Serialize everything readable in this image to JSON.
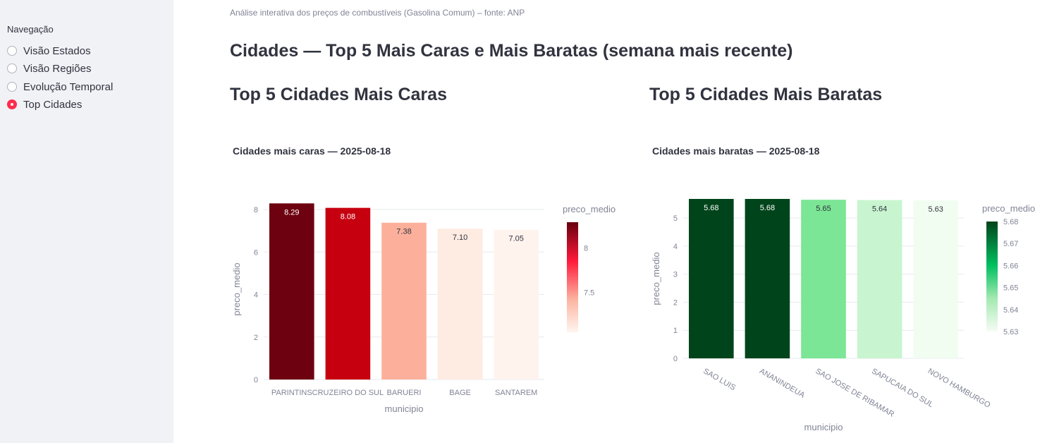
{
  "sidebar": {
    "title": "Navegação",
    "items": [
      {
        "label": "Visão Estados",
        "selected": false
      },
      {
        "label": "Visão Regiões",
        "selected": false
      },
      {
        "label": "Evolução Temporal",
        "selected": false
      },
      {
        "label": "Top Cidades",
        "selected": true
      }
    ]
  },
  "main": {
    "caption": "Análise interativa dos preços de combustíveis (Gasolina Comum) – fonte: ANP",
    "title": "Cidades — Top 5 Mais Caras e Mais Baratas (semana mais recente)",
    "left_heading": "Top 5 Cidades Mais Caras",
    "right_heading": "Top 5 Cidades Mais Baratas"
  },
  "colors": {
    "accent": "#ff2b4b",
    "sidebar_bg": "#f0f2f6"
  },
  "chart_data": [
    {
      "type": "bar",
      "title": "Cidades mais caras — 2025-08-18",
      "xlabel": "municipio",
      "ylabel": "preco_medio",
      "categories": [
        "PARINTINS",
        "CRUZEIRO DO SUL",
        "BARUERI",
        "BAGE",
        "SANTAREM"
      ],
      "values": [
        8.29,
        8.08,
        7.38,
        7.1,
        7.05
      ],
      "data_labels": [
        "8.29",
        "8.08",
        "7.38",
        "7.10",
        "7.05"
      ],
      "ylim": [
        0,
        8.5
      ],
      "yticks": [
        0,
        2,
        4,
        6,
        8
      ],
      "colorbar": {
        "title": "preco_medio",
        "ticks": [
          "8",
          "7.5"
        ],
        "tick_values": [
          8,
          7.5
        ],
        "range": [
          7.05,
          8.29
        ],
        "scale": "Reds"
      },
      "bar_colors": [
        "#6d010f",
        "#c6000f",
        "#fcb09b",
        "#feebe2",
        "#fff3ee"
      ],
      "label_colors": [
        "#ffffff",
        "#ffffff",
        "#31333f",
        "#31333f",
        "#31333f"
      ],
      "grid": true,
      "legend": "right"
    },
    {
      "type": "bar",
      "title": "Cidades mais baratas — 2025-08-18",
      "xlabel": "municipio",
      "ylabel": "preco_medio",
      "categories": [
        "SAO LUIS",
        "ANANINDEUA",
        "SAO JOSE DE RIBAMAR",
        "SAPUCAIA DO SUL",
        "NOVO HAMBURGO"
      ],
      "values": [
        5.68,
        5.68,
        5.65,
        5.64,
        5.63
      ],
      "data_labels": [
        "5.68",
        "5.68",
        "5.65",
        "5.64",
        "5.63"
      ],
      "ylim": [
        0,
        5.68
      ],
      "yticks": [
        0,
        1,
        2,
        3,
        4,
        5
      ],
      "colorbar": {
        "title": "preco_medio",
        "ticks": [
          "5.68",
          "5.67",
          "5.66",
          "5.65",
          "5.64",
          "5.63"
        ],
        "tick_values": [
          5.68,
          5.67,
          5.66,
          5.65,
          5.64,
          5.63
        ],
        "range": [
          5.63,
          5.68
        ],
        "scale": "Greens"
      },
      "bar_colors": [
        "#00441b",
        "#00441b",
        "#7be695",
        "#c8f5cf",
        "#f2fdf2"
      ],
      "label_colors": [
        "#ffffff",
        "#ffffff",
        "#31333f",
        "#31333f",
        "#31333f"
      ],
      "grid": true,
      "legend": "right"
    }
  ]
}
